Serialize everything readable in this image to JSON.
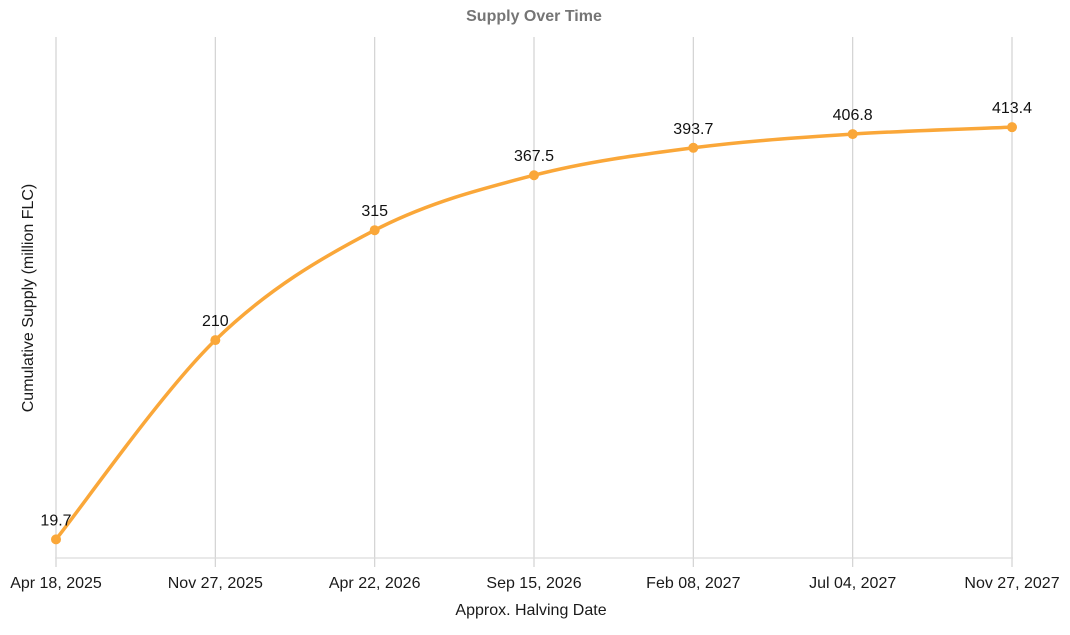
{
  "chart_data": {
    "type": "line",
    "title": "Supply Over Time",
    "xlabel": "Approx. Halving Date",
    "ylabel": "Cumulative Supply (million FLC)",
    "categories": [
      "Apr 18, 2025",
      "Nov 27, 2025",
      "Apr 22, 2026",
      "Sep 15, 2026",
      "Feb 08, 2027",
      "Jul 04, 2027",
      "Nov 27, 2027"
    ],
    "series": [
      {
        "name": "Cumulative Supply",
        "values": [
          19.7,
          210,
          315,
          367.5,
          393.7,
          406.8,
          413.4
        ]
      }
    ],
    "point_labels": [
      "19.7",
      "210",
      "315",
      "367.5",
      "393.7",
      "406.8",
      "413.4"
    ],
    "ylim": [
      0,
      500
    ],
    "grid": "vertical-only",
    "legend": "none",
    "marker": "circle",
    "line_style": "smooth"
  },
  "colors": {
    "line_color": "#FAA739",
    "marker_color": "#FAA739",
    "grid_color": "#D2D2D2",
    "axis_line_color": "#DCDCDC",
    "title_color": "#757575",
    "text_color": "#1A1A1A",
    "point_label_color": "#111111",
    "background": "#FFFFFF"
  }
}
